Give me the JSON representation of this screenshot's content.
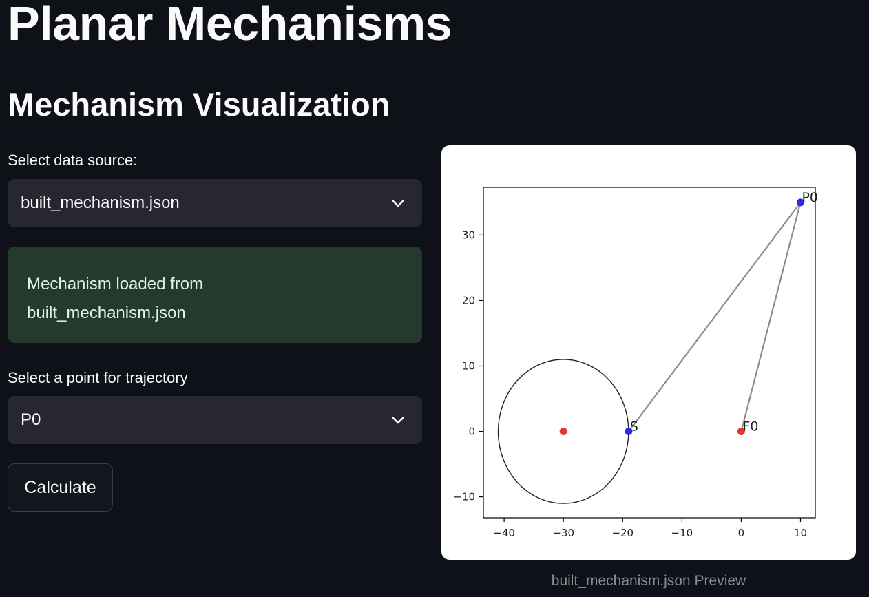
{
  "header": {
    "title": "Planar Mechanisms",
    "section_title": "Mechanism Visualization"
  },
  "data_source": {
    "label": "Select data source:",
    "selected": "built_mechanism.json"
  },
  "success": {
    "message": "Mechanism loaded from built_mechanism.json"
  },
  "trajectory": {
    "label": "Select a point for trajectory",
    "selected": "P0"
  },
  "calculate_button": {
    "label": "Calculate"
  },
  "preview": {
    "caption": "built_mechanism.json Preview"
  },
  "icons": {
    "select_toggle": "chevron-down-icon"
  },
  "colors": {
    "background": "#0e1117",
    "select_bg": "#262730",
    "success_bg": "#233a2c",
    "fixed_point": "#e0382c",
    "moving_point": "#2b2bee",
    "link": "#8c8c8c"
  },
  "chart_data": {
    "type": "scatter",
    "xlim": [
      -43.5,
      12.5
    ],
    "ylim": [
      -13.2,
      37.3
    ],
    "xticks": [
      -40,
      -30,
      -20,
      -10,
      0,
      10
    ],
    "yticks": [
      -10,
      0,
      10,
      20,
      30
    ],
    "grid": false,
    "circle": {
      "cx": -30,
      "cy": 0,
      "r": 11
    },
    "fixed_points": [
      {
        "x": -30,
        "y": 0,
        "label": ""
      },
      {
        "x": 0,
        "y": 0,
        "label": "F0"
      }
    ],
    "moving_points": [
      {
        "x": -19,
        "y": 0,
        "label": "S"
      },
      {
        "x": 10,
        "y": 35,
        "label": "P0"
      }
    ],
    "links": [
      {
        "from": [
          -19,
          0
        ],
        "to": [
          10,
          35
        ]
      },
      {
        "from": [
          0,
          0
        ],
        "to": [
          10,
          35
        ]
      }
    ]
  }
}
